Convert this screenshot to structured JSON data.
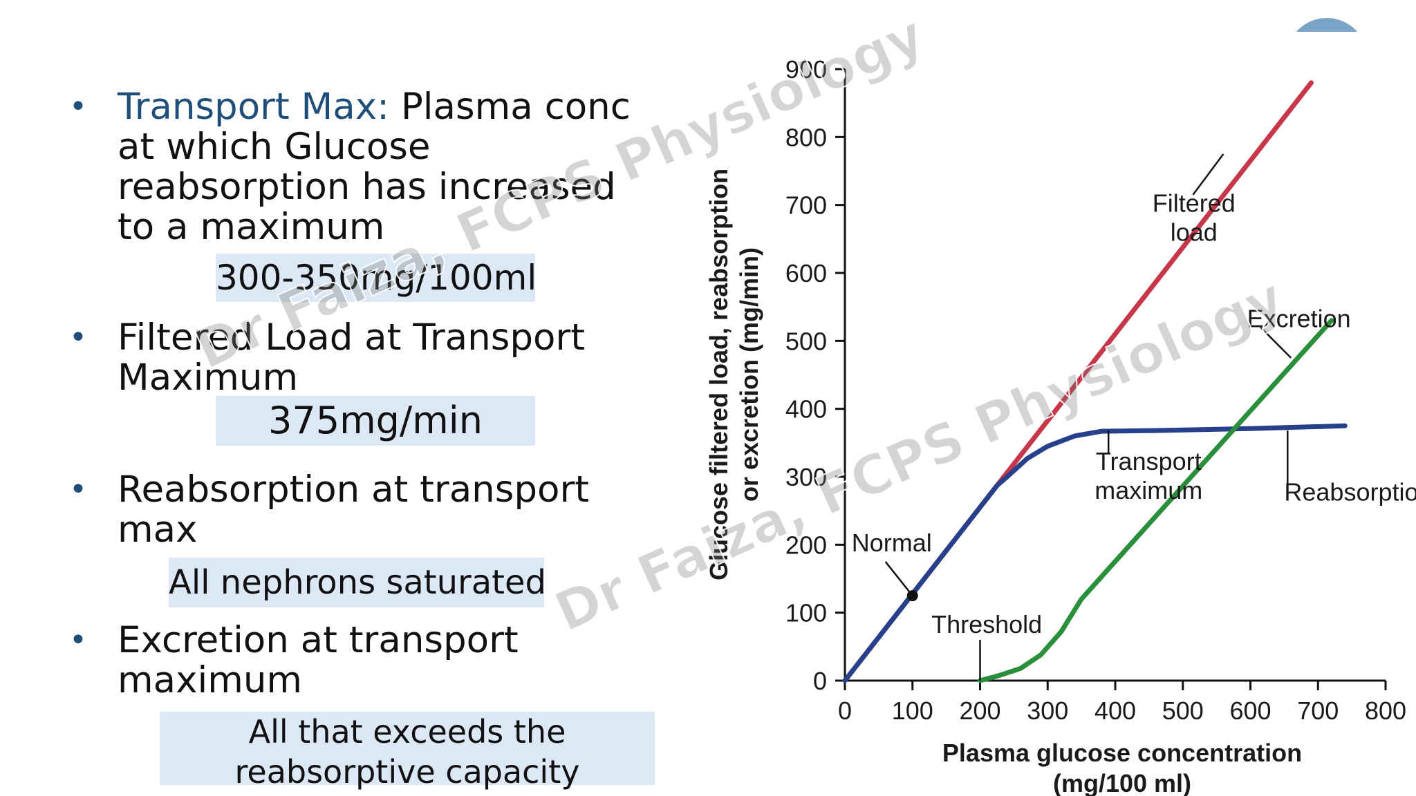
{
  "bullets": [
    {
      "term": "Transport Max:",
      "lines": [
        "Plasma conc",
        "at which Glucose",
        "reabsorption has increased",
        "to a maximum"
      ],
      "highlight": [
        "300-350mg/100ml"
      ]
    },
    {
      "lines": [
        "Filtered Load at Transport",
        "Maximum"
      ],
      "highlight": [
        "375mg/min"
      ]
    },
    {
      "lines": [
        "Reabsorption at transport",
        "max"
      ],
      "highlight": [
        "All nephrons saturated"
      ]
    },
    {
      "lines": [
        "Excretion at transport",
        "maximum"
      ],
      "highlight": [
        "All that exceeds the",
        "reabsorptive capacity"
      ]
    }
  ],
  "watermark": "Dr Faiza, FCPS Physiology",
  "colors": {
    "accent": "#1f4e79",
    "highlight_bg": "#dce8f5",
    "filtered": "#c8364a",
    "reabsorption": "#27408b",
    "excretion": "#2a8f3a",
    "corner_shape": "#7aa3c8"
  },
  "chart_data": {
    "type": "line",
    "xlabel": [
      "Plasma glucose concentration",
      "(mg/100 ml)"
    ],
    "ylabel": [
      "Glucose filtered load, reabsorption",
      "or excretion (mg/min)"
    ],
    "xlim": [
      0,
      800
    ],
    "ylim": [
      0,
      900
    ],
    "xticks": [
      0,
      100,
      200,
      300,
      400,
      500,
      600,
      700,
      800
    ],
    "yticks": [
      0,
      100,
      200,
      300,
      400,
      500,
      600,
      700,
      800,
      900
    ],
    "series": [
      {
        "key": "filtered",
        "points": [
          [
            0,
            0
          ],
          [
            690,
            880
          ]
        ]
      },
      {
        "key": "reabsorption",
        "points": [
          [
            0,
            0
          ],
          [
            225,
            287
          ],
          [
            240,
            300
          ],
          [
            270,
            327
          ],
          [
            300,
            345
          ],
          [
            340,
            360
          ],
          [
            380,
            367
          ],
          [
            460,
            368
          ],
          [
            600,
            371
          ],
          [
            740,
            375
          ]
        ]
      },
      {
        "key": "excretion",
        "points": [
          [
            200,
            0
          ],
          [
            230,
            8
          ],
          [
            260,
            18
          ],
          [
            290,
            38
          ],
          [
            320,
            72
          ],
          [
            350,
            120
          ],
          [
            720,
            530
          ]
        ]
      }
    ],
    "annotations": [
      {
        "lines": [
          "Filtered",
          "load"
        ],
        "x": 455,
        "y": 690
      },
      {
        "lines": [
          "Excretion"
        ],
        "x": 595,
        "y": 520
      },
      {
        "lines": [
          "Transport",
          "maximum"
        ],
        "x": 388,
        "y": 310
      },
      {
        "lines": [
          "Reabsorption"
        ],
        "x": 650,
        "y": 265
      },
      {
        "lines": [
          "Normal"
        ],
        "x": 10,
        "y": 190
      },
      {
        "lines": [
          "Threshold"
        ],
        "x": 128,
        "y": 70
      }
    ],
    "normal_point": [
      100,
      125
    ]
  }
}
